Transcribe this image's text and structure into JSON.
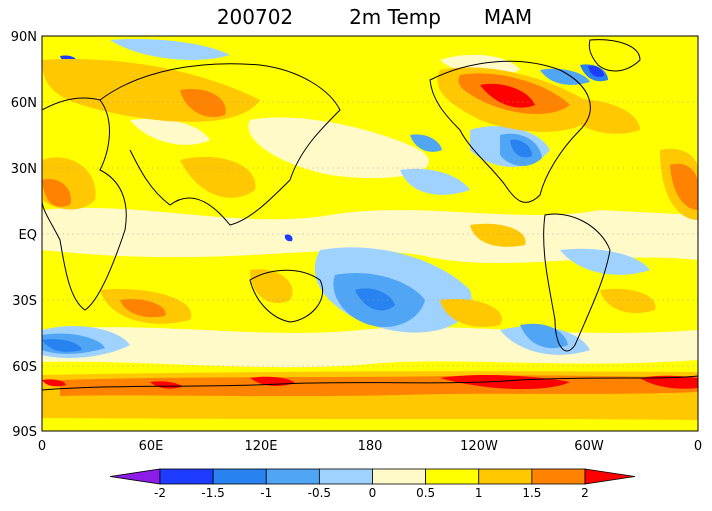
{
  "title": {
    "date": "200702",
    "variable": "2m Temp",
    "season": "MAM"
  },
  "axes": {
    "lat_labels": [
      "90N",
      "60N",
      "30N",
      "EQ",
      "30S",
      "60S",
      "90S"
    ],
    "lon_labels": [
      "0",
      "60E",
      "120E",
      "180",
      "120W",
      "60W",
      "0"
    ]
  },
  "colorbar": {
    "tick_labels": [
      "-2",
      "-1.5",
      "-1",
      "-0.5",
      "0",
      "0.5",
      "1",
      "1.5",
      "2"
    ],
    "colors": [
      "#8c1ce8",
      "#1e3cff",
      "#2882f0",
      "#50a5f5",
      "#a0d2ff",
      "#fffac8",
      "#ffff00",
      "#ffc800",
      "#ff8200",
      "#ff0000"
    ]
  },
  "palette": {
    "land_outline": "#000000",
    "grid": "#a0a0a0"
  }
}
